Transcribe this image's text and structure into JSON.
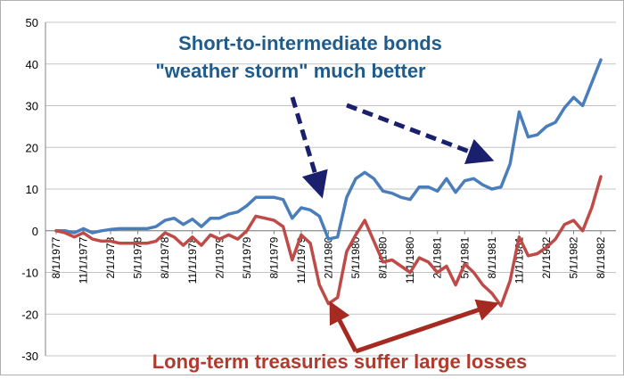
{
  "chart_data": {
    "type": "line",
    "ylim": [
      -30,
      50
    ],
    "yticks": [
      50,
      40,
      30,
      20,
      10,
      0,
      -10,
      -20,
      -30
    ],
    "grid": "horizontal",
    "legend": "none",
    "x_tick_labels": [
      "8/1/1977",
      "11/1/1977",
      "2/1/1978",
      "5/1/1978",
      "8/1/1978",
      "11/1/1978",
      "2/1/1979",
      "5/1/1979",
      "8/1/1979",
      "11/1/1979",
      "2/1/1980",
      "5/1/1980",
      "8/1/1980",
      "11/1/1980",
      "2/1/1981",
      "5/1/1981",
      "8/1/1981",
      "11/1/1981",
      "2/1/1982",
      "5/1/1982",
      "8/1/1982"
    ],
    "series": [
      {
        "color": "#4a7ebb",
        "values": [
          0,
          0,
          -0.5,
          0.5,
          -0.5,
          0,
          0.3,
          0.5,
          0.5,
          0.5,
          0.5,
          1,
          2.5,
          3,
          1.5,
          2.8,
          1,
          3,
          3,
          4,
          4.5,
          6,
          8,
          8,
          8,
          7.5,
          3,
          5.5,
          5,
          3.5,
          -2,
          -1.5,
          8,
          12.5,
          14,
          12.5,
          9.5,
          9,
          8,
          7.5,
          10.5,
          10.5,
          9.5,
          12.5,
          9.2,
          12,
          12.5,
          11,
          10,
          10.5,
          16,
          28.5,
          22.5,
          23,
          25,
          26,
          29.5,
          32,
          30,
          35.5,
          41
        ]
      },
      {
        "color": "#be4b48",
        "values": [
          0,
          -0.5,
          -1.5,
          -0.5,
          -2,
          -2.5,
          -2.5,
          -3,
          -3,
          -3,
          -3,
          -2.5,
          -0.5,
          -1.5,
          -3.5,
          -1.5,
          -3.5,
          -1,
          -2,
          -1,
          -2,
          0,
          3.5,
          3,
          2.5,
          1,
          -7,
          -1,
          -3,
          -13,
          -17.5,
          -16,
          -5,
          -1,
          2.5,
          -2.5,
          -7.5,
          -7,
          -8.5,
          -10,
          -6.5,
          -7.5,
          -10,
          -8.5,
          -13,
          -8,
          -10,
          -13,
          -15,
          -18,
          -12,
          -1.5,
          -6,
          -5.5,
          -4,
          -2,
          1.5,
          2.5,
          0,
          5.5,
          13
        ]
      }
    ],
    "annotations": {
      "blue_line1": "Short-to-intermediate bonds",
      "blue_line2": "\"weather storm\" much better",
      "red": "Long-term treasuries suffer large losses"
    }
  }
}
